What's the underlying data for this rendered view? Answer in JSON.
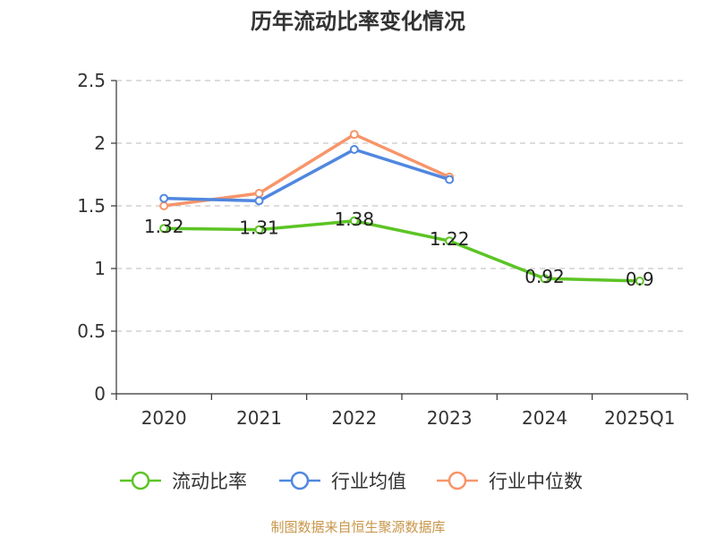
{
  "chart_data": {
    "type": "line",
    "title": "历年流动比率变化情况",
    "categories": [
      "2020",
      "2021",
      "2022",
      "2023",
      "2024",
      "2025Q1"
    ],
    "y_ticks": [
      "0",
      "0.5",
      "1",
      "1.5",
      "2",
      "2.5"
    ],
    "ylim": [
      0,
      2.5
    ],
    "grid": true,
    "legend_position": "bottom",
    "series": [
      {
        "name": "流动比率",
        "color": "#5cc424",
        "values": [
          1.32,
          1.31,
          1.38,
          1.22,
          0.92,
          0.9
        ],
        "labels": [
          "1.32",
          "1.31",
          "1.38",
          "1.22",
          "0.92",
          "0.9"
        ]
      },
      {
        "name": "行业均值",
        "color": "#5087e0",
        "values": [
          1.56,
          1.54,
          1.95,
          1.71,
          null,
          null
        ]
      },
      {
        "name": "行业中位数",
        "color": "#f7956a",
        "values": [
          1.5,
          1.6,
          2.07,
          1.73,
          null,
          null
        ]
      }
    ],
    "source": "制图数据来自恒生聚源数据库"
  }
}
